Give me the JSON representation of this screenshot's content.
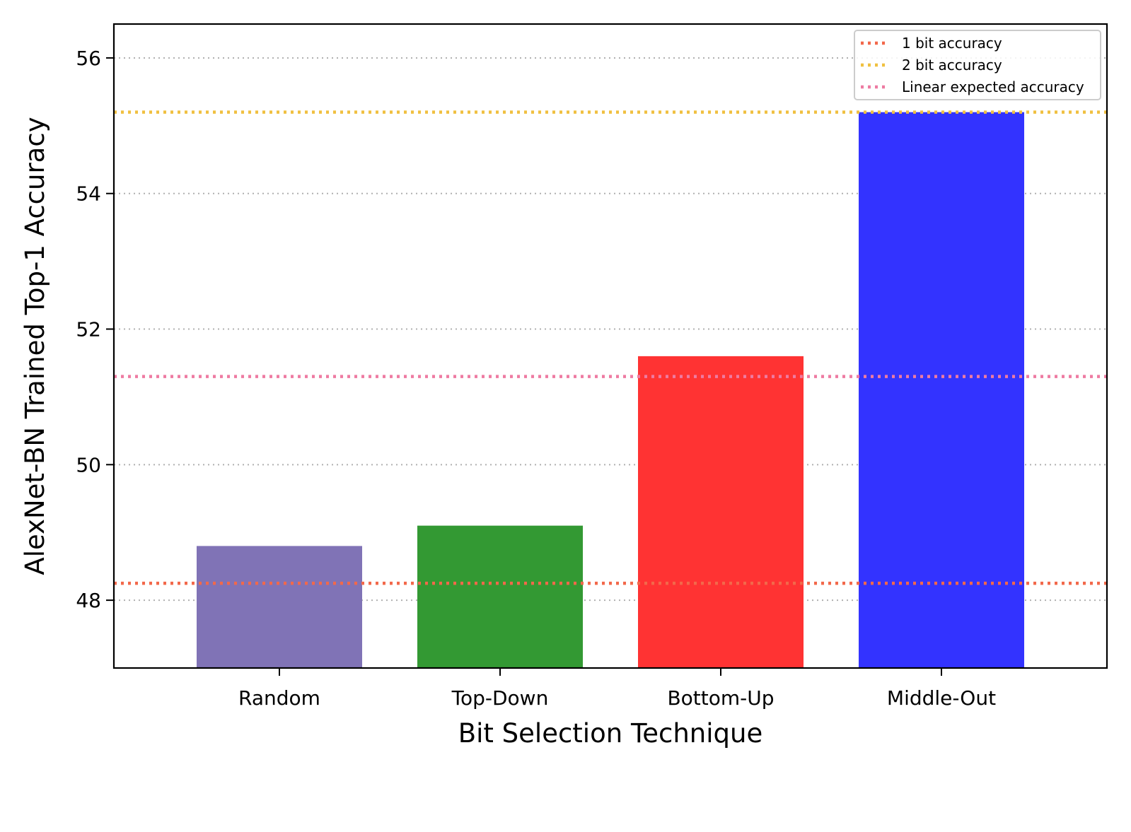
{
  "chart_data": {
    "type": "bar",
    "title": "",
    "xlabel": "Bit Selection Technique",
    "ylabel": "AlexNet-BN Trained Top-1 Accuracy",
    "categories": [
      "Random",
      "Top-Down",
      "Bottom-Up",
      "Middle-Out"
    ],
    "values": [
      48.8,
      49.1,
      51.6,
      55.2
    ],
    "bar_colors": [
      "#8073b6",
      "#339933",
      "#ff3333",
      "#3333ff"
    ],
    "ylim": [
      47.0,
      56.5
    ],
    "yticks": [
      48,
      50,
      52,
      54,
      56
    ],
    "ytick_labels": [
      "48",
      "50",
      "52",
      "54",
      "56"
    ],
    "grid": true,
    "grid_axis": "y",
    "grid_style": "dotted",
    "grid_color": "#b0b0b0",
    "reference_lines": [
      {
        "name": "1 bit accuracy",
        "value": 48.25,
        "color": "#f2684a",
        "style": "dotted"
      },
      {
        "name": "2 bit accuracy",
        "value": 55.2,
        "color": "#f0c040",
        "style": "dotted"
      },
      {
        "name": "Linear expected accuracy",
        "value": 51.3,
        "color": "#ee7ba2",
        "style": "dotted"
      }
    ],
    "legend": {
      "placement": "top-right",
      "entries": [
        "1 bit accuracy",
        "2 bit accuracy",
        "Linear expected accuracy"
      ]
    }
  }
}
